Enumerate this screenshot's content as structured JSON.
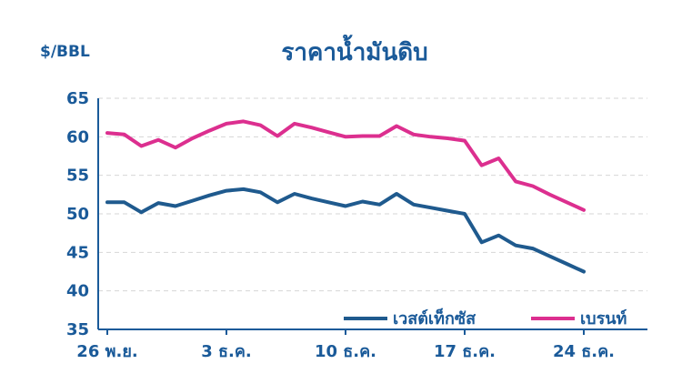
{
  "chart_data": {
    "type": "line",
    "title": "ราคาน้ำมันดิบ",
    "ylabel": "$/BBL",
    "xlabel": "",
    "ylim": [
      35,
      65
    ],
    "yticks": [
      35,
      40,
      45,
      50,
      55,
      60,
      65
    ],
    "xtick_labels": [
      "26 พ.ย.",
      "3 ธ.ค.",
      "10 ธ.ค.",
      "17 ธ.ค.",
      "24 ธ.ค."
    ],
    "xtick_index": [
      0,
      7,
      14,
      21,
      28
    ],
    "x_count": 29,
    "grid": true,
    "legend_position": "bottom-right",
    "series": [
      {
        "name": "เวสต์เท็กซัส",
        "color": "#1f5a8e",
        "values": [
          51.5,
          51.5,
          50.2,
          51.4,
          51.0,
          51.7,
          52.4,
          53.0,
          53.2,
          52.8,
          51.5,
          52.6,
          52.0,
          51.5,
          51.0,
          51.6,
          51.2,
          52.6,
          51.2,
          50.8,
          50.4,
          50.0,
          46.3,
          47.2,
          45.9,
          45.5,
          44.5,
          43.5,
          42.5
        ]
      },
      {
        "name": "เบรนท์",
        "color": "#dc2f8f",
        "values": [
          60.5,
          60.3,
          58.8,
          59.6,
          58.6,
          59.8,
          60.8,
          61.7,
          62.0,
          61.5,
          60.1,
          61.7,
          61.2,
          60.6,
          60.0,
          60.1,
          60.1,
          61.4,
          60.3,
          60.0,
          59.8,
          59.5,
          56.3,
          57.2,
          54.2,
          53.6,
          52.5,
          51.5,
          50.5
        ]
      }
    ]
  }
}
